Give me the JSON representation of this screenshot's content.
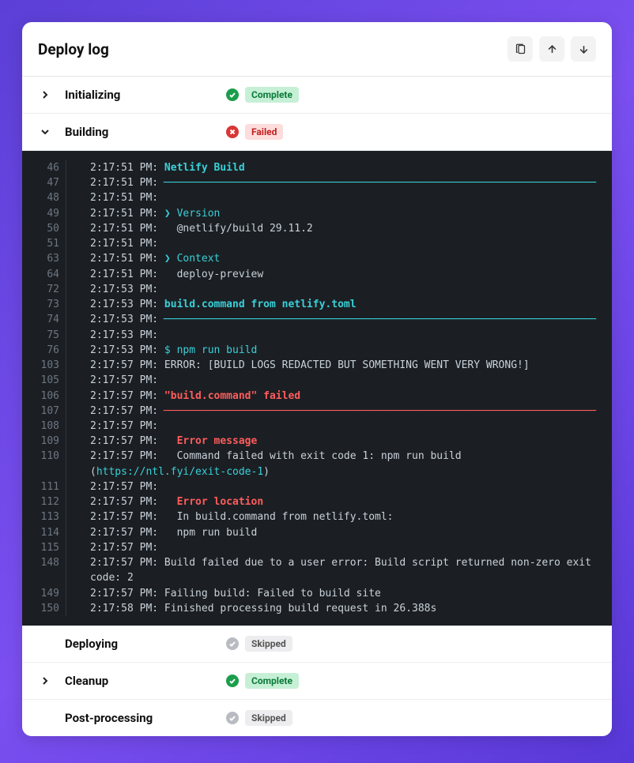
{
  "header": {
    "title": "Deploy log"
  },
  "colors": {
    "bg_grad_a": "#5b3fd6",
    "bg_grad_b": "#7b4ff0",
    "terminal_bg": "#1b1f23",
    "terminal_fg": "#c9d1d9",
    "line_num": "#6e7681",
    "teal": "#39d0d8",
    "red": "#ff5c5c",
    "badge_complete_bg": "#c6f0d6",
    "badge_complete_fg": "#0a7a38",
    "badge_failed_bg": "#fddcdc",
    "badge_failed_fg": "#c22020",
    "badge_skipped_bg": "#ededef",
    "badge_skipped_fg": "#555"
  },
  "stages": [
    {
      "label": "Initializing",
      "status": "complete",
      "badge": "Complete",
      "expandable": true,
      "expanded": false
    },
    {
      "label": "Building",
      "status": "failed",
      "badge": "Failed",
      "expandable": true,
      "expanded": true
    },
    {
      "label": "Deploying",
      "status": "skipped",
      "badge": "Skipped",
      "expandable": false,
      "expanded": false
    },
    {
      "label": "Cleanup",
      "status": "complete",
      "badge": "Complete",
      "expandable": true,
      "expanded": false
    },
    {
      "label": "Post-processing",
      "status": "skipped",
      "badge": "Skipped",
      "expandable": false,
      "expanded": false
    }
  ],
  "ruler": "────────────────────────────────────────────────────────────────────────────────",
  "log": {
    "link_url": "https://ntl.fyi/exit-code-1",
    "lines": [
      {
        "n": "46",
        "ts": "2:17:51 PM:",
        "segs": [
          {
            "k": "teal-b",
            "t": " Netlify Build"
          }
        ]
      },
      {
        "n": "47",
        "ts": "2:17:51 PM:",
        "segs": [
          {
            "k": "hr-teal",
            "ruler": true
          }
        ]
      },
      {
        "n": "48",
        "ts": "2:17:51 PM:",
        "segs": []
      },
      {
        "n": "49",
        "ts": "2:17:51 PM:",
        "segs": [
          {
            "k": "teal",
            "t": " ❯ Version"
          }
        ]
      },
      {
        "n": "50",
        "ts": "2:17:51 PM:",
        "segs": [
          {
            "k": "",
            "t": "   @netlify/build 29.11.2"
          }
        ]
      },
      {
        "n": "51",
        "ts": "2:17:51 PM:",
        "segs": []
      },
      {
        "n": "63",
        "ts": "2:17:51 PM:",
        "segs": [
          {
            "k": "teal",
            "t": " ❯ Context"
          }
        ]
      },
      {
        "n": "64",
        "ts": "2:17:51 PM:",
        "segs": [
          {
            "k": "",
            "t": "   deploy-preview"
          }
        ]
      },
      {
        "n": "72",
        "ts": "2:17:53 PM:",
        "segs": []
      },
      {
        "n": "73",
        "ts": "2:17:53 PM:",
        "segs": [
          {
            "k": "teal-b",
            "t": " build.command from netlify.toml"
          }
        ]
      },
      {
        "n": "74",
        "ts": "2:17:53 PM:",
        "segs": [
          {
            "k": "hr-teal",
            "ruler": true
          }
        ]
      },
      {
        "n": "75",
        "ts": "2:17:53 PM:",
        "segs": []
      },
      {
        "n": "76",
        "ts": "2:17:53 PM:",
        "segs": [
          {
            "k": "teal",
            "t": " $ npm run build"
          }
        ]
      },
      {
        "n": "103",
        "ts": "2:17:57 PM:",
        "segs": [
          {
            "k": "",
            "t": " ERROR: [BUILD LOGS REDACTED BUT SOMETHING WENT VERY WRONG!]"
          }
        ]
      },
      {
        "n": "105",
        "ts": "2:17:57 PM:",
        "segs": []
      },
      {
        "n": "106",
        "ts": "2:17:57 PM:",
        "segs": [
          {
            "k": "red-b",
            "t": " \"build.command\" failed"
          }
        ]
      },
      {
        "n": "107",
        "ts": "2:17:57 PM:",
        "segs": [
          {
            "k": "hr-red",
            "ruler": true
          }
        ]
      },
      {
        "n": "108",
        "ts": "2:17:57 PM:",
        "segs": []
      },
      {
        "n": "109",
        "ts": "2:17:57 PM:",
        "segs": [
          {
            "k": "red-b",
            "t": "   Error message"
          }
        ]
      },
      {
        "n": "110",
        "ts": "2:17:57 PM:",
        "segs": [
          {
            "k": "",
            "t": "   Command failed with exit code 1: npm run build ("
          },
          {
            "k": "link",
            "link": true
          },
          {
            "k": "",
            "t": ")"
          }
        ]
      },
      {
        "n": "111",
        "ts": "2:17:57 PM:",
        "segs": []
      },
      {
        "n": "112",
        "ts": "2:17:57 PM:",
        "segs": [
          {
            "k": "red-b",
            "t": "   Error location"
          }
        ]
      },
      {
        "n": "113",
        "ts": "2:17:57 PM:",
        "segs": [
          {
            "k": "",
            "t": "   In build.command from netlify.toml:"
          }
        ]
      },
      {
        "n": "114",
        "ts": "2:17:57 PM:",
        "segs": [
          {
            "k": "",
            "t": "   npm run build"
          }
        ]
      },
      {
        "n": "115",
        "ts": "2:17:57 PM:",
        "segs": []
      },
      {
        "n": "148",
        "ts": "2:17:57 PM:",
        "segs": [
          {
            "k": "",
            "t": " Build failed due to a user error: Build script returned non-zero exit code: 2"
          }
        ]
      },
      {
        "n": "149",
        "ts": "2:17:57 PM:",
        "segs": [
          {
            "k": "",
            "t": " Failing build: Failed to build site"
          }
        ]
      },
      {
        "n": "150",
        "ts": "2:17:58 PM:",
        "segs": [
          {
            "k": "",
            "t": " Finished processing build request in 26.388s"
          }
        ]
      }
    ]
  }
}
